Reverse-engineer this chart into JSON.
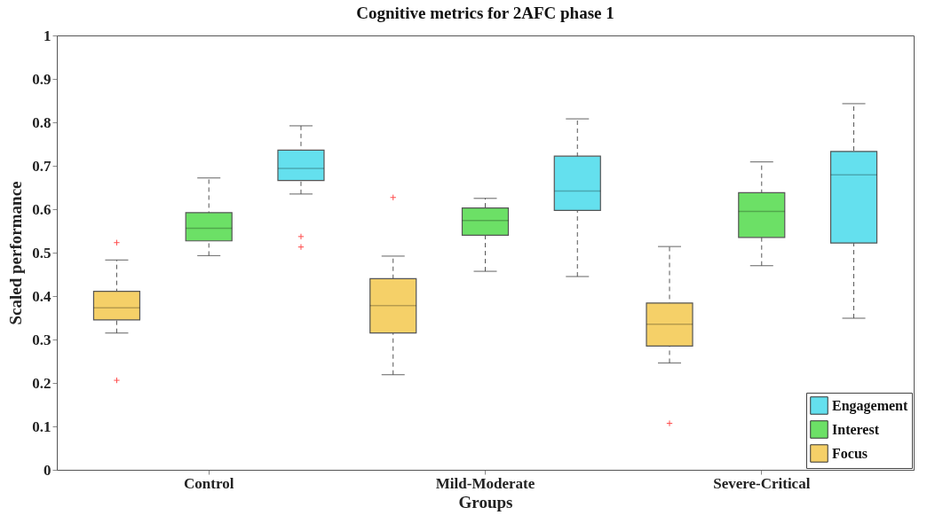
{
  "chart_data": {
    "type": "box",
    "title": "Cognitive metrics for 2AFC phase 1",
    "xlabel": "Groups",
    "ylabel": "Scaled performance",
    "categories": [
      "Control",
      "Mild-Moderate",
      "Severe-Critical"
    ],
    "ylim": [
      0,
      1
    ],
    "yticks": [
      0,
      0.1,
      0.2,
      0.3,
      0.4,
      0.5,
      0.6,
      0.7,
      0.8,
      0.9,
      1
    ],
    "legend": "bottom right",
    "series": [
      {
        "name": "Focus",
        "color": "#f5d068",
        "boxes": [
          {
            "low": 0.315,
            "q1": 0.345,
            "median": 0.373,
            "q3": 0.411,
            "high": 0.483,
            "outliers": [
              0.523,
              0.206
            ]
          },
          {
            "low": 0.219,
            "q1": 0.315,
            "median": 0.378,
            "q3": 0.44,
            "high": 0.492,
            "outliers": [
              0.627
            ]
          },
          {
            "low": 0.246,
            "q1": 0.285,
            "median": 0.335,
            "q3": 0.384,
            "high": 0.514,
            "outliers": [
              0.107
            ]
          }
        ]
      },
      {
        "name": "Interest",
        "color": "#6ce066",
        "boxes": [
          {
            "low": 0.493,
            "q1": 0.527,
            "median": 0.556,
            "q3": 0.592,
            "high": 0.672
          },
          {
            "low": 0.457,
            "q1": 0.54,
            "median": 0.574,
            "q3": 0.603,
            "high": 0.625
          },
          {
            "low": 0.47,
            "q1": 0.535,
            "median": 0.595,
            "q3": 0.638,
            "high": 0.709
          }
        ]
      },
      {
        "name": "Engagement",
        "color": "#64e0ee",
        "boxes": [
          {
            "low": 0.635,
            "q1": 0.666,
            "median": 0.694,
            "q3": 0.736,
            "high": 0.792,
            "outliers": [
              0.537,
              0.513
            ]
          },
          {
            "low": 0.445,
            "q1": 0.597,
            "median": 0.642,
            "q3": 0.722,
            "high": 0.808
          },
          {
            "low": 0.349,
            "q1": 0.522,
            "median": 0.679,
            "q3": 0.733,
            "high": 0.843
          }
        ]
      }
    ]
  }
}
